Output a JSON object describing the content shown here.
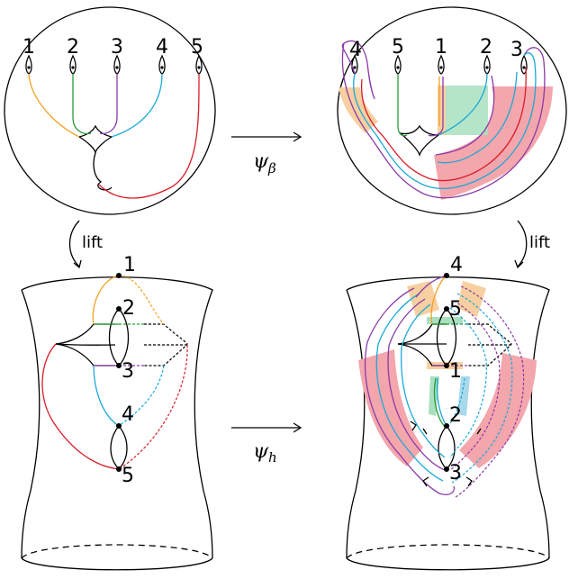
{
  "panels": {
    "top_left": {
      "labels": [
        "1",
        "2",
        "3",
        "4",
        "5"
      ]
    },
    "top_right": {
      "labels": [
        "4",
        "5",
        "1",
        "2",
        "3"
      ]
    },
    "bottom_left": {
      "labels": [
        "1",
        "2",
        "3",
        "4",
        "5"
      ]
    },
    "bottom_right": {
      "labels": [
        "4",
        "5",
        "1",
        "2",
        "3"
      ]
    }
  },
  "arrows": {
    "psi_beta": {
      "symbol": "ψ",
      "sub": "β"
    },
    "psi_h": {
      "symbol": "ψ",
      "sub": "h"
    },
    "lift_left": "lift",
    "lift_right": "lift"
  },
  "colors": {
    "orange": "#f2a020",
    "green": "#2a9a3a",
    "purple": "#8a3aa8",
    "cyan": "#1aa8d8",
    "red": "#d81e2a",
    "band_red": "#f3a6ac",
    "band_orange": "#f7cfa0",
    "band_green": "#a8e0c0"
  }
}
